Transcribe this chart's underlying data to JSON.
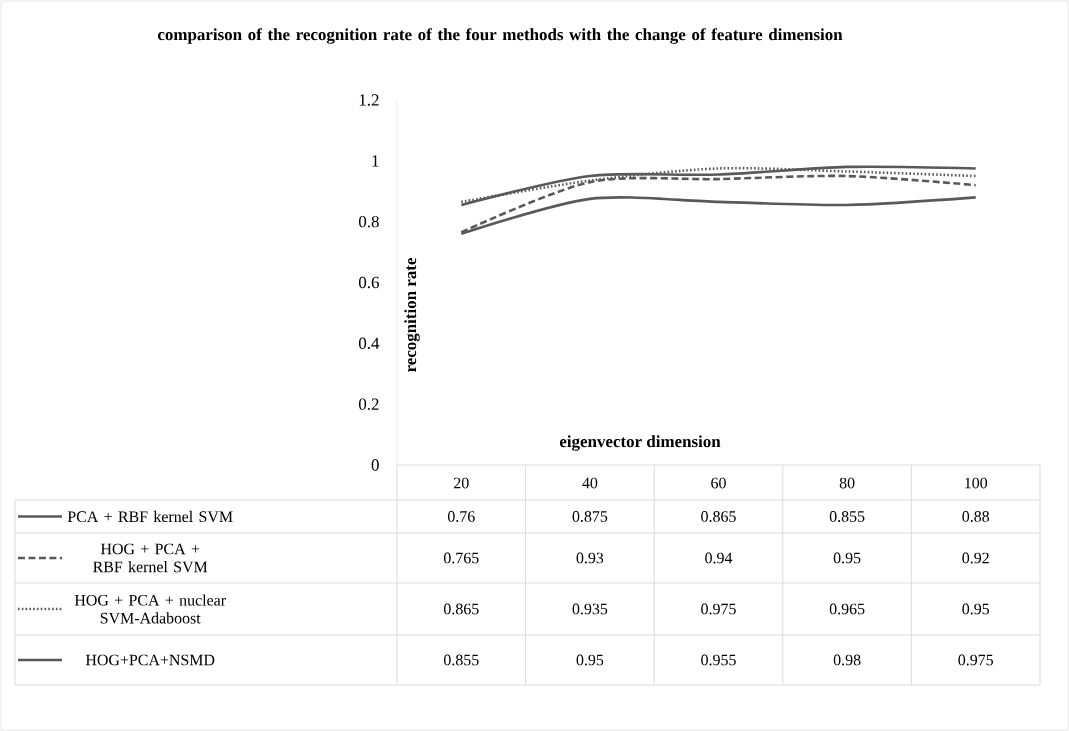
{
  "chart_data": {
    "type": "line",
    "title": "comparison of the recognition rate of the four methods with the change of feature dimension",
    "xlabel": "eigenvector dimension",
    "ylabel": "recognition rate",
    "categories": [
      "20",
      "40",
      "60",
      "80",
      "100"
    ],
    "series": [
      {
        "name": "PCA + RBF kernel SVM",
        "color": "#595959",
        "line_style": "solid",
        "values": [
          0.76,
          0.875,
          0.865,
          0.855,
          0.88
        ]
      },
      {
        "name": "HOG + PCA + RBF kernel SVM",
        "color": "#595959",
        "line_style": "dashed",
        "values": [
          0.765,
          0.93,
          0.94,
          0.95,
          0.92
        ]
      },
      {
        "name": "HOG + PCA + nuclear SVM-Adaboost",
        "color": "#595959",
        "line_style": "dotted",
        "values": [
          0.865,
          0.935,
          0.975,
          0.965,
          0.95
        ]
      },
      {
        "name": "HOG+PCA+NSMD",
        "color": "#595959",
        "line_style": "solid",
        "values": [
          0.855,
          0.95,
          0.955,
          0.98,
          0.975
        ]
      }
    ],
    "ylim": [
      0,
      1.2
    ],
    "yticks": [
      0,
      0.2,
      0.4,
      0.6,
      0.8,
      1,
      1.2
    ],
    "data_labels": true,
    "legend": "bottom"
  }
}
